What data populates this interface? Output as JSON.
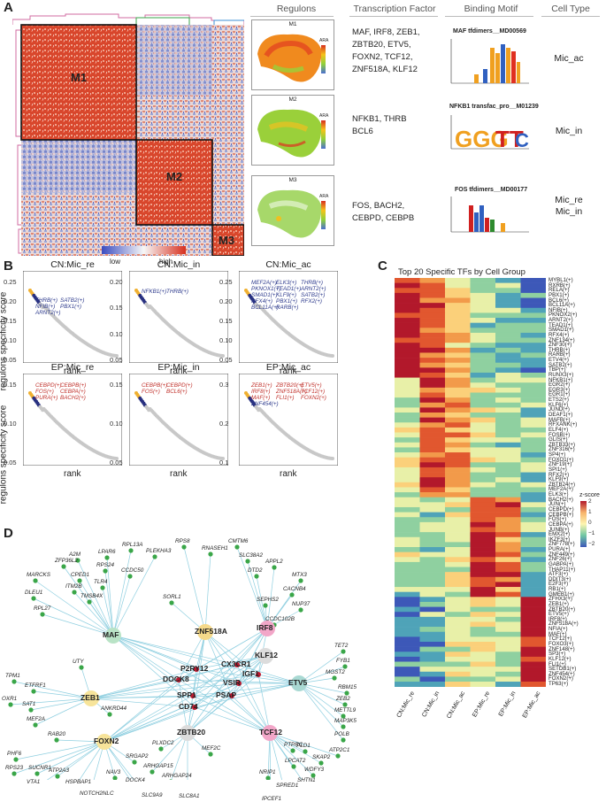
{
  "panels": {
    "a": "A",
    "b": "B",
    "c": "C",
    "d": "D"
  },
  "panelA": {
    "headers": [
      "Regulons",
      "Transcription Factor",
      "Binding Motif",
      "Cell Type"
    ],
    "modules": [
      "M1",
      "M2",
      "M3"
    ],
    "legend": {
      "low": "low",
      "high": "high"
    },
    "rows": [
      {
        "map_title": "M1",
        "tfs": "MAF, IRF8, ZEB1,\nZBTB20, ETV5,\nFOXN2, TCF12,\nZNF518A, KLF12",
        "motif": "MAF tfdimers__MD00569",
        "cell": "Mic_ac",
        "ara_ticks": [
          "0.150",
          "0.125",
          "0.100",
          "0.075"
        ]
      },
      {
        "map_title": "M2",
        "tfs": "NFKB1, THRB\nBCL6",
        "motif": "NFKB1 transfac_pro__M01239",
        "cell": "Mic_in",
        "ara_ticks": [
          "0.15",
          "0.10",
          "0.05"
        ]
      },
      {
        "map_title": "M3",
        "tfs": "FOS, BACH2,\nCEBPD, CEBPB",
        "motif": "FOS tfdimers__MD00177",
        "cell": "Mic_re\nMic_in",
        "ara_ticks": [
          "0.15",
          "0.10",
          "0.05",
          "0.04"
        ]
      }
    ],
    "ara_label": "ARA",
    "bits_label": "bits",
    "colors": {
      "heat_high": "#d7301f",
      "heat_low": "#3b4cc0",
      "heat_mid": "#f7f7f7"
    }
  },
  "panelB": {
    "ylabel": "regulons specificity score",
    "xlabel": "rank",
    "plots": [
      {
        "title": "CN:Mic_re",
        "yticks": [
          "0.25",
          "0.20",
          "0.15",
          "0.10",
          "0.05"
        ],
        "labels": [
          "THRB(+)",
          "SATB2(+)",
          "NFIB(+)",
          "PBX1(+)",
          "ARNT2(+)"
        ]
      },
      {
        "title": "CN:Mic_in",
        "yticks": [
          "0.20",
          "0.15",
          "0.10",
          "0.05"
        ],
        "labels": [
          "NFKB1(+)",
          "THRB(+)"
        ]
      },
      {
        "title": "CN:Mic_ac",
        "yticks": [
          "0.25",
          "0.20",
          "0.15",
          "0.10",
          "0.05"
        ],
        "labels": [
          "MEF2A(+)",
          "ELK3(+)",
          "THRB(+)",
          "PKNOX1(+)",
          "TEAD1(+)",
          "ARNT2(+)",
          "SMAD1(+)",
          "KLF9(+)",
          "SATB2(+)",
          "RFX4(+)",
          "PBX1(+)",
          "RFX2(+)",
          "BCL11A(+)",
          "RARB(+)"
        ]
      },
      {
        "title": "EP:Mic_re",
        "yticks": [
          "0.15",
          "0.10",
          "0.05"
        ],
        "labels": [
          "CEBPD(+)",
          "CEBPB(+)",
          "FOS(+)",
          "CEBPA(+)",
          "PURA(+)",
          "BACH2(+)"
        ]
      },
      {
        "title": "EP:Mic_in",
        "yticks": [
          "0.15",
          "0.10",
          "0.05"
        ],
        "labels": [
          "CEBPB(+)",
          "CEBPD(+)",
          "FOS(+)",
          "BCL6(+)"
        ]
      },
      {
        "title": "EP:Mic_ac",
        "yticks": [
          "0.3",
          "0.2",
          "0.1"
        ],
        "labels": [
          "ZEB1(+)",
          "ZBTB20(+)",
          "ETV5(+)",
          "IRF8(+)",
          "ZNF518A(+)",
          "TCF12(+)",
          "MAF(+)",
          "FLI1(+)",
          "FOXN2(+)",
          "ZNF454(+)"
        ]
      }
    ]
  },
  "panelC": {
    "title": "Top 20 Specific TFs  by Cell Group",
    "columns": [
      "CN:Mic_re",
      "CN:Mic_in",
      "CN:Mic_ac",
      "EP:Mic_re",
      "EP:Mic_in",
      "EP:Mic_ac"
    ],
    "rows": [
      "MYBL1(+)",
      "RXRB(+)",
      "RELA(+)",
      "PBX1(+)",
      "BCL6(+)",
      "BCL11A(+)",
      "NFIB(+)",
      "PKNOX2(+)",
      "ARNT2(+)",
      "TEAD1(+)",
      "SMAD1(+)",
      "RFX4(+)",
      "ZNF134(+)",
      "ZNF30(+)",
      "THRB(+)",
      "RARB(+)",
      "ETV4(+)",
      "SATB2(+)",
      "TBP(+)",
      "RUNX3(+)",
      "NFKB1(+)",
      "EGR2(+)",
      "EGR3(+)",
      "EGR1(+)",
      "ETS2(+)",
      "KLF6(+)",
      "JUND(+)",
      "DEAF1(+)",
      "MAFB(+)",
      "RFXANK(+)",
      "ELF4(+)",
      "FOSB(+)",
      "GLIS(+)",
      "ZBTB33(+)",
      "ZNF316(+)",
      "SP4(+)",
      "FOXO1(+)",
      "ZNF19(+)",
      "SPI1(+)",
      "RFX2(+)",
      "KLF9(+)",
      "ZBTB24(+)",
      "MEF2A(+)",
      "ELK3(+)",
      "BACH2(+)",
      "JUN(+)",
      "CEBPD(+)",
      "CEBPB(+)",
      "FOS(+)",
      "CEBPA(+)",
      "JUNB(+)",
      "EMX2(+)",
      "IKZF3(+)",
      "ZNF778(+)",
      "PURA(+)",
      "ZNF449(+)",
      "ZNF26(+)",
      "GABPA(+)",
      "THAP11(+)",
      "ATF3(+)",
      "DDIT3(+)",
      "E2F3(+)",
      "RB1(+)",
      "GMEB1(+)",
      "ZFHX3(+)",
      "ZEB1(+)",
      "ZBTB20(+)",
      "ETV5(+)",
      "IRF8(+)",
      "ZNF518A(+)",
      "NFIA(+)",
      "MAF(+)",
      "TCF12(+)",
      "FOXO3(+)",
      "ZNF148(+)",
      "SP3(+)",
      "KLF12(+)",
      "FLI1(+)",
      "SETDB1(+)",
      "ZNF454(+)",
      "FOXN2(+)",
      "TP63(+)"
    ],
    "legend_title": "z-score",
    "legend_ticks": [
      "2",
      "1",
      "0",
      "−1",
      "−2"
    ]
  },
  "panelD": {
    "hubs": [
      {
        "name": "MAF",
        "color": "#b9e3c6"
      },
      {
        "name": "ZNF518A",
        "color": "#f5d98a"
      },
      {
        "name": "IRF8",
        "color": "#f2a6c8"
      },
      {
        "name": "KLF12",
        "color": "#dcdcdc"
      },
      {
        "name": "ZEB1",
        "color": "#f7e49a"
      },
      {
        "name": "ETV5",
        "color": "#a9d9d3"
      },
      {
        "name": "FOXN2",
        "color": "#f7e49a"
      },
      {
        "name": "ZBTB20",
        "color": "#dcdcdc"
      },
      {
        "name": "TCF12",
        "color": "#f2a6c8"
      }
    ],
    "center": [
      "CX3CR1",
      "P2RY12",
      "IGF1",
      "DOCK8",
      "VSIR",
      "PSAP",
      "SPP1",
      "CD74"
    ],
    "genes": [
      "RPS8",
      "PLEKHA3",
      "CMTM6",
      "RNASEH1",
      "SLC38A2",
      "LPAR6",
      "RPL13A",
      "ZFP36L2",
      "A2M",
      "RPS24",
      "CCDC50",
      "MARCKS",
      "CPED1",
      "TLR4",
      "ITM2B",
      "DLEU1",
      "TMSB4X",
      "RPL27",
      "SORL1",
      "APPL2",
      "DTD2",
      "MTX3",
      "CACNB4",
      "NUP37",
      "SEPHS2",
      "CCDC102B",
      "TET2",
      "FYB1",
      "MGST2",
      "RBM15",
      "ZEB2",
      "METTL9",
      "MAP3K5",
      "POLB",
      "ATP2C1",
      "PLD1",
      "UTY",
      "TPM1",
      "ETFRF1",
      "OXR1",
      "SAT1",
      "MEF2A",
      "RAB20",
      "ANKRD44",
      "PHF6",
      "RPS23",
      "SUCNR1",
      "ATP2A3",
      "VTA1",
      "HSPBAP1",
      "NOTCH2NLC",
      "SRGAP2",
      "NAV3",
      "DOCK4",
      "SLC9A9",
      "ARHGAP15",
      "ARHGAP24",
      "SLC8A1",
      "PLXDC2",
      "MEF2C",
      "PTPRC",
      "LPCAT2",
      "WDFY3",
      "SKAP2",
      "SHTN1",
      "NRIP1",
      "SPRED1",
      "IPCEF1"
    ]
  }
}
